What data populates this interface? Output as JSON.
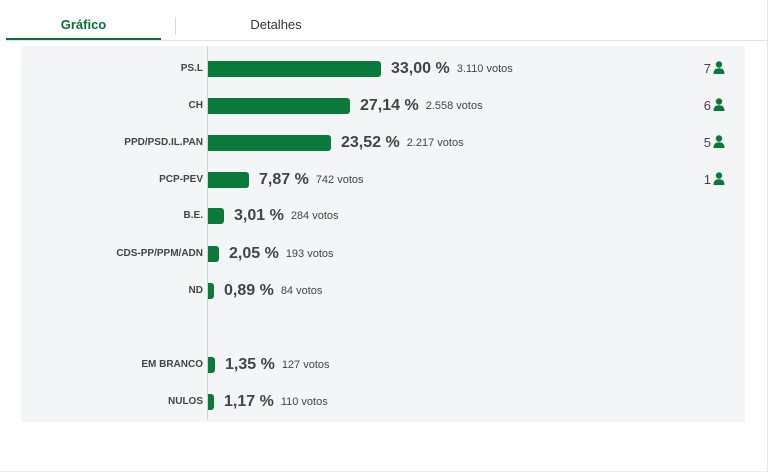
{
  "tabs": [
    {
      "label": "Gráfico",
      "active": true
    },
    {
      "label": "Detalhes",
      "active": false
    }
  ],
  "colors": {
    "accent": "#0a6e35",
    "bar": "#0a7a3a",
    "panel": "#f3f5f7",
    "text": "#444444"
  },
  "icons": {
    "seat": "person-icon"
  },
  "chart_data": {
    "type": "bar",
    "orientation": "horizontal",
    "unit": "%",
    "categories": [
      "PS.L",
      "CH",
      "PPD/PSD.IL.PAN",
      "PCP-PEV",
      "B.E.",
      "CDS-PP/PPM/ADN",
      "ND",
      "EM BRANCO",
      "NULOS"
    ],
    "values": [
      33.0,
      27.14,
      23.52,
      7.87,
      3.01,
      2.05,
      0.89,
      1.35,
      1.17
    ],
    "value_labels": [
      "33,00 %",
      "27,14 %",
      "23,52 %",
      "7,87 %",
      "3,01 %",
      "2,05 %",
      "0,89 %",
      "1,35 %",
      "1,17 %"
    ],
    "votes": [
      "3.110 votos",
      "2.558 votos",
      "2.217 votos",
      "742 votos",
      "284 votos",
      "193 votos",
      "84 votos",
      "127 votos",
      "110 votos"
    ],
    "seats": [
      "7",
      "6",
      "5",
      "1",
      "",
      "",
      "",
      "",
      ""
    ],
    "xlim": [
      0,
      33.0
    ],
    "grid": false
  }
}
